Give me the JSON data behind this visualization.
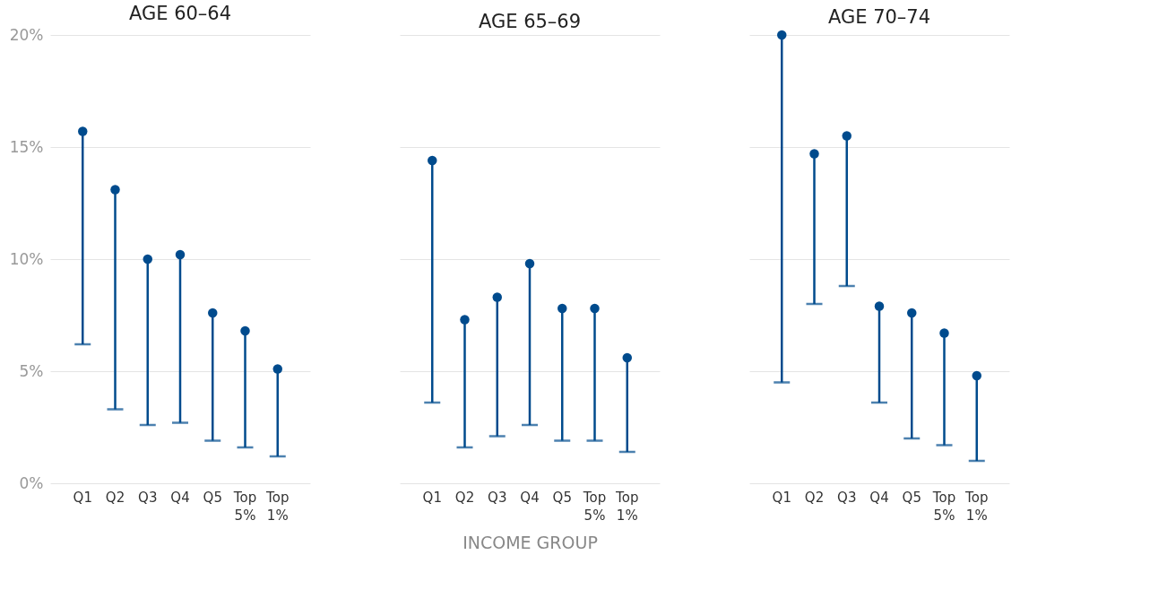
{
  "chart_data": [
    {
      "type": "scatter",
      "title": "AGE 60–64",
      "categories": [
        "Q1",
        "Q2",
        "Q3",
        "Q4",
        "Q5",
        "Top 5%",
        "Top 1%"
      ],
      "values": [
        15.7,
        13.1,
        10.0,
        10.2,
        7.6,
        6.8,
        5.1
      ],
      "errors": [
        [
          6.2,
          15.7
        ],
        [
          3.3,
          13.1
        ],
        [
          2.6,
          10.0
        ],
        [
          2.7,
          10.2
        ],
        [
          1.9,
          7.6
        ],
        [
          1.6,
          6.8
        ],
        [
          1.2,
          5.1
        ]
      ],
      "color": "#004b8d",
      "ylim": [
        0,
        20
      ],
      "yticks": [
        {
          "value": 0,
          "label": "0%"
        },
        {
          "value": 5,
          "label": "5%"
        },
        {
          "value": 10,
          "label": "10%"
        },
        {
          "value": 15,
          "label": "15%"
        },
        {
          "value": 20,
          "label": "20%"
        }
      ],
      "grid": "y",
      "marker": "circle"
    },
    {
      "type": "scatter",
      "title": "AGE 65–69",
      "xlabel": "INCOME GROUP",
      "categories": [
        "Q1",
        "Q2",
        "Q3",
        "Q4",
        "Q5",
        "Top 5%",
        "Top 1%"
      ],
      "values": [
        14.4,
        7.3,
        8.3,
        9.8,
        7.8,
        7.8,
        5.6
      ],
      "errors": [
        [
          3.6,
          14.4
        ],
        [
          1.6,
          7.3
        ],
        [
          2.1,
          8.3
        ],
        [
          2.6,
          9.8
        ],
        [
          1.9,
          7.8
        ],
        [
          1.9,
          7.8
        ],
        [
          1.4,
          5.6
        ]
      ],
      "color": "#004b8d",
      "ylim": [
        0,
        20
      ],
      "yticks": [
        0,
        5,
        10,
        15,
        20
      ],
      "grid": "y",
      "marker": "circle",
      "tick_labels": "x"
    },
    {
      "type": "scatter",
      "title": "AGE 70–74",
      "categories": [
        "Q1",
        "Q2",
        "Q3",
        "Q4",
        "Q5",
        "Top 5%",
        "Top 1%"
      ],
      "values": [
        20.0,
        14.7,
        15.5,
        7.9,
        7.6,
        6.7,
        4.8
      ],
      "errors": [
        [
          4.5,
          20.0
        ],
        [
          8.0,
          14.7
        ],
        [
          8.8,
          15.5
        ],
        [
          3.6,
          7.9
        ],
        [
          2.0,
          7.6
        ],
        [
          1.7,
          6.7
        ],
        [
          1.0,
          4.8
        ]
      ],
      "color": "#004b8d",
      "ylim": [
        0,
        20
      ],
      "yticks": [
        0,
        5,
        10,
        15,
        20
      ],
      "grid": "y",
      "marker": "circle",
      "tick_labels": "x"
    }
  ]
}
